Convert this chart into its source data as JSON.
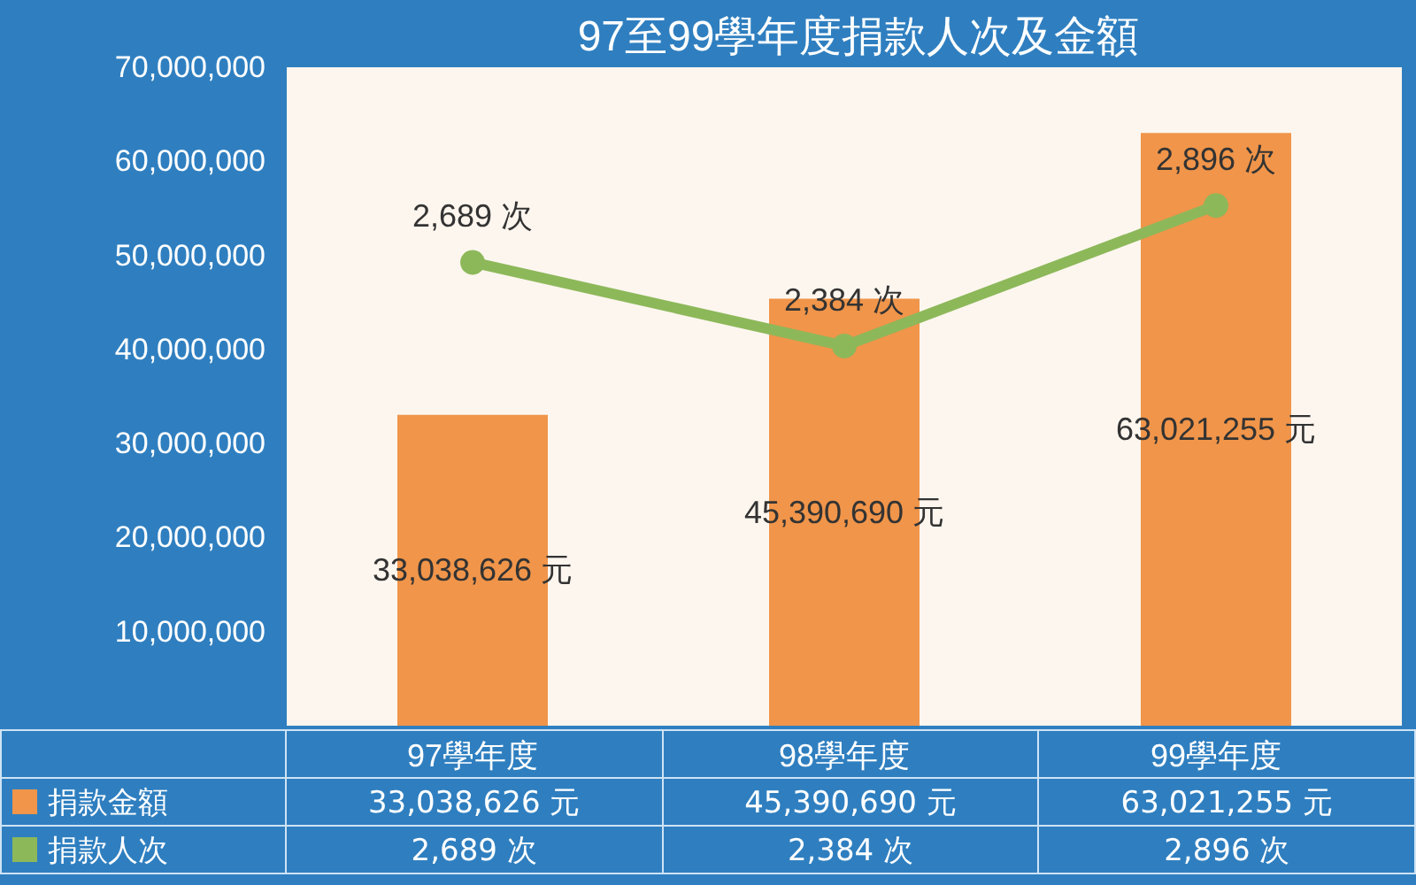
{
  "chart_data": {
    "type": "bar",
    "title": "97至99學年度捐款人次及金額",
    "categories": [
      "97學年度",
      "98學年度",
      "99學年度"
    ],
    "series": [
      {
        "name": "捐款金額",
        "color": "#f0954a",
        "values": [
          33038626,
          45390690,
          63021255
        ],
        "value_labels": [
          "33,038,626 元",
          "45,390,690 元",
          "63,021,255 元"
        ]
      },
      {
        "name": "捐款人次",
        "type": "line",
        "axis": "y2",
        "color": "#8db85a",
        "values": [
          2689,
          2384,
          2896
        ],
        "value_labels": [
          "2,689 次",
          "2,384 次",
          "2,896 次"
        ]
      }
    ],
    "ylim": [
      0,
      70000000
    ],
    "yticks": [
      {
        "value": 10000000,
        "label": "10,000,000"
      },
      {
        "value": 20000000,
        "label": "20,000,000"
      },
      {
        "value": 30000000,
        "label": "30,000,000"
      },
      {
        "value": 40000000,
        "label": "40,000,000"
      },
      {
        "value": 50000000,
        "label": "50,000,000"
      },
      {
        "value": 60000000,
        "label": "60,000,000"
      },
      {
        "value": 70000000,
        "label": "70,000,000"
      }
    ],
    "y2lim": [
      1000,
      3400
    ],
    "tick_labels": "y",
    "grid": false,
    "legend": "bottom",
    "marker": "circle",
    "line_style": "solid"
  }
}
